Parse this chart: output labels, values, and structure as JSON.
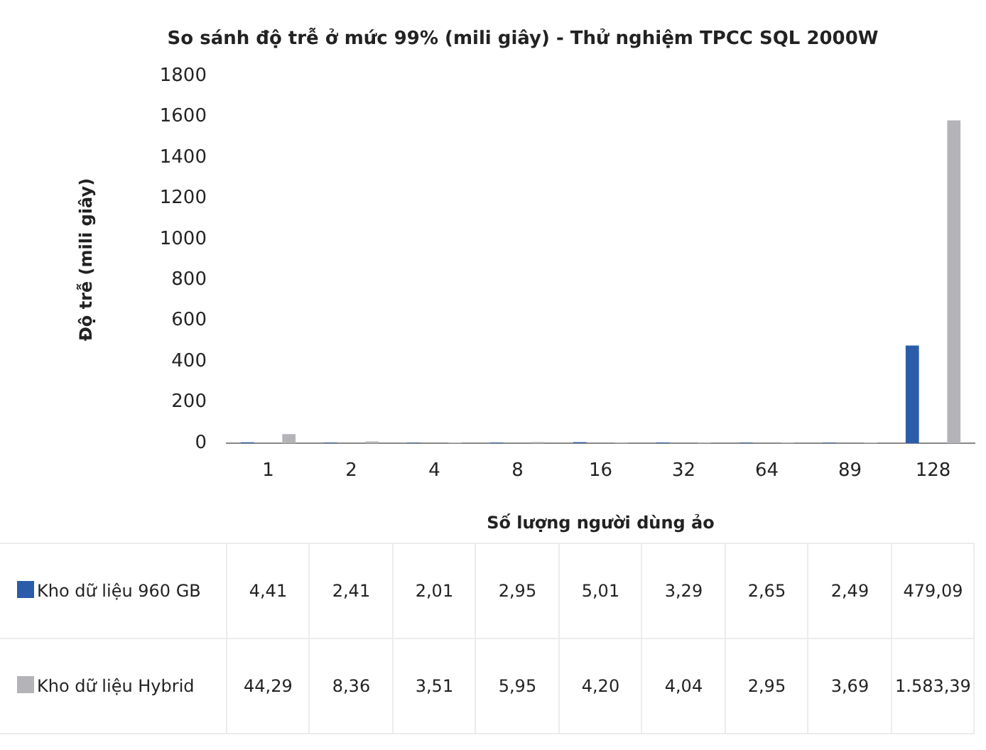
{
  "chart_data": {
    "type": "bar",
    "title": "So sánh độ trễ ở mức 99% (mili giây) - Thử nghiệm TPCC SQL 2000W",
    "xlabel": "Số lượng người dùng ảo",
    "ylabel": "Độ trễ (mili giây)",
    "categories": [
      "1",
      "2",
      "4",
      "8",
      "16",
      "32",
      "64",
      "89",
      "128"
    ],
    "series": [
      {
        "name": "Kho dữ liệu 960 GB",
        "color": "#2a5caa",
        "values": [
          4.41,
          2.41,
          2.01,
          2.95,
          5.01,
          3.29,
          2.65,
          2.49,
          479.09
        ],
        "value_labels": [
          "4,41",
          "2,41",
          "2,01",
          "2,95",
          "5,01",
          "3,29",
          "2,65",
          "2,49",
          "479,09"
        ]
      },
      {
        "name": "Kho dữ liệu Hybrid",
        "color": "#b4b4b8",
        "values": [
          44.29,
          8.36,
          3.51,
          5.95,
          4.2,
          4.04,
          2.95,
          3.69,
          1583.39
        ],
        "value_labels": [
          "44,29",
          "8,36",
          "3,51",
          "5,95",
          "4,20",
          "4,04",
          "2,95",
          "3,69",
          "1.583,39"
        ]
      }
    ],
    "ylim": [
      0,
      1800
    ],
    "yticks": [
      0,
      200,
      400,
      600,
      800,
      1000,
      1200,
      1400,
      1600,
      1800
    ],
    "grid": false,
    "legend": "bottom"
  }
}
